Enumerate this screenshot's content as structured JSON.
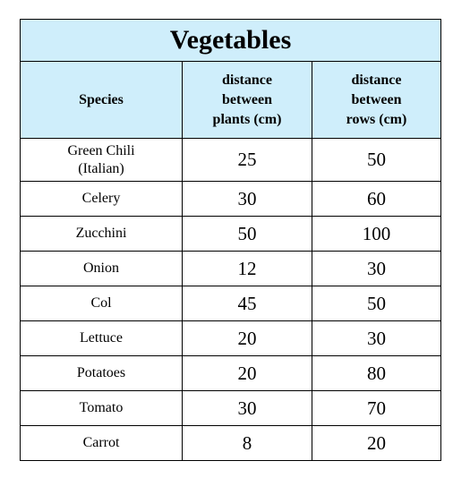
{
  "table": {
    "title": "Vegetables",
    "headers": [
      "Species",
      "distance\nbetween\nplants  (cm)",
      "distance\nbetween\nrows  (cm)"
    ],
    "rows": [
      {
        "species": "Green Chili\n(Italian)",
        "plants": "25",
        "rows": "50"
      },
      {
        "species": "Celery",
        "plants": "30",
        "rows": "60"
      },
      {
        "species": "Zucchini",
        "plants": "50",
        "rows": "100"
      },
      {
        "species": "Onion",
        "plants": "12",
        "rows": "30"
      },
      {
        "species": "Col",
        "plants": "45",
        "rows": "50"
      },
      {
        "species": "Lettuce",
        "plants": "20",
        "rows": "30"
      },
      {
        "species": "Potatoes",
        "plants": "20",
        "rows": "80"
      },
      {
        "species": "Tomato",
        "plants": "30",
        "rows": "70"
      },
      {
        "species": "Carrot",
        "plants": "8",
        "rows": "20"
      }
    ],
    "colors": {
      "header_background": "#cfeefb",
      "border": "#000000"
    }
  }
}
